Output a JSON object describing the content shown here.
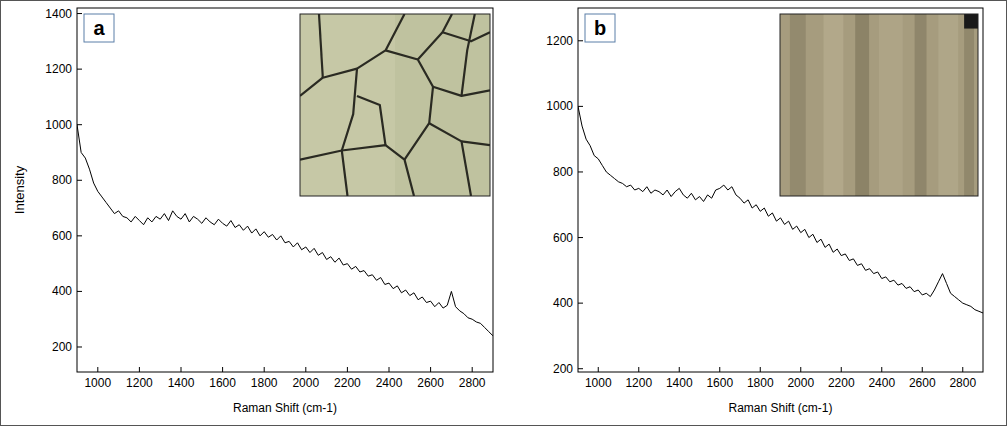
{
  "chart_data": [
    {
      "type": "line",
      "panel_label": "a",
      "x_label": "Raman Shift (cm-1)",
      "y_label": "Intensity",
      "xlim": [
        900,
        2900
      ],
      "ylim": [
        110,
        1420
      ],
      "xticks": [
        1000,
        1200,
        1400,
        1600,
        1800,
        2000,
        2200,
        2400,
        2600,
        2800
      ],
      "yticks": [
        200,
        400,
        600,
        800,
        1000,
        1200,
        1400
      ],
      "grid": false,
      "x": [
        900,
        920,
        940,
        960,
        980,
        1000,
        1020,
        1040,
        1060,
        1080,
        1100,
        1120,
        1140,
        1160,
        1180,
        1200,
        1220,
        1240,
        1260,
        1280,
        1300,
        1320,
        1340,
        1360,
        1380,
        1400,
        1420,
        1440,
        1460,
        1480,
        1500,
        1520,
        1540,
        1560,
        1580,
        1600,
        1620,
        1640,
        1660,
        1680,
        1700,
        1720,
        1740,
        1760,
        1780,
        1800,
        1820,
        1840,
        1860,
        1880,
        1900,
        1920,
        1940,
        1960,
        1980,
        2000,
        2020,
        2040,
        2060,
        2080,
        2100,
        2120,
        2140,
        2160,
        2180,
        2200,
        2220,
        2240,
        2260,
        2280,
        2300,
        2320,
        2340,
        2360,
        2380,
        2400,
        2420,
        2440,
        2460,
        2480,
        2500,
        2520,
        2540,
        2560,
        2580,
        2600,
        2620,
        2640,
        2660,
        2680,
        2700,
        2720,
        2740,
        2760,
        2780,
        2800,
        2820,
        2840,
        2860,
        2880,
        2900
      ],
      "series": [
        {
          "color": "#000000",
          "values": [
            1000,
            900,
            880,
            840,
            790,
            760,
            740,
            720,
            700,
            680,
            690,
            670,
            665,
            650,
            670,
            655,
            640,
            665,
            650,
            670,
            660,
            680,
            655,
            690,
            670,
            660,
            680,
            650,
            670,
            660,
            645,
            665,
            650,
            640,
            660,
            645,
            635,
            655,
            630,
            640,
            620,
            635,
            610,
            625,
            600,
            615,
            595,
            605,
            585,
            600,
            575,
            580,
            560,
            575,
            550,
            560,
            540,
            555,
            530,
            540,
            515,
            525,
            505,
            520,
            495,
            500,
            480,
            490,
            470,
            475,
            455,
            460,
            440,
            450,
            425,
            430,
            410,
            420,
            395,
            405,
            385,
            395,
            370,
            380,
            360,
            365,
            345,
            360,
            340,
            350,
            400,
            345,
            330,
            320,
            305,
            300,
            290,
            285,
            270,
            255,
            240
          ]
        }
      ]
    },
    {
      "type": "line",
      "panel_label": "b",
      "x_label": "Raman Shift (cm-1)",
      "xlim": [
        900,
        2900
      ],
      "ylim": [
        190,
        1300
      ],
      "xticks": [
        1000,
        1200,
        1400,
        1600,
        1800,
        2000,
        2200,
        2400,
        2600,
        2800
      ],
      "yticks": [
        200,
        400,
        600,
        800,
        1000,
        1200
      ],
      "grid": false,
      "x": [
        900,
        920,
        940,
        960,
        980,
        1000,
        1020,
        1040,
        1060,
        1080,
        1100,
        1120,
        1140,
        1160,
        1180,
        1200,
        1220,
        1240,
        1260,
        1280,
        1300,
        1320,
        1340,
        1360,
        1380,
        1400,
        1420,
        1440,
        1460,
        1480,
        1500,
        1520,
        1540,
        1560,
        1580,
        1600,
        1620,
        1640,
        1660,
        1680,
        1700,
        1720,
        1740,
        1760,
        1780,
        1800,
        1820,
        1840,
        1860,
        1880,
        1900,
        1920,
        1940,
        1960,
        1980,
        2000,
        2020,
        2040,
        2060,
        2080,
        2100,
        2120,
        2140,
        2160,
        2180,
        2200,
        2220,
        2240,
        2260,
        2280,
        2300,
        2320,
        2340,
        2360,
        2380,
        2400,
        2420,
        2440,
        2460,
        2480,
        2500,
        2520,
        2540,
        2560,
        2580,
        2600,
        2620,
        2640,
        2660,
        2680,
        2700,
        2720,
        2740,
        2760,
        2780,
        2800,
        2820,
        2840,
        2860,
        2880,
        2900
      ],
      "series": [
        {
          "color": "#000000",
          "values": [
            1000,
            940,
            900,
            880,
            850,
            840,
            820,
            800,
            790,
            780,
            770,
            765,
            755,
            760,
            745,
            750,
            740,
            755,
            735,
            745,
            740,
            730,
            745,
            725,
            740,
            750,
            730,
            720,
            735,
            715,
            725,
            710,
            730,
            720,
            745,
            750,
            760,
            745,
            755,
            730,
            720,
            705,
            715,
            690,
            700,
            680,
            690,
            665,
            675,
            650,
            660,
            640,
            650,
            625,
            635,
            615,
            625,
            600,
            610,
            585,
            595,
            570,
            580,
            555,
            565,
            545,
            550,
            530,
            535,
            515,
            520,
            500,
            505,
            490,
            495,
            475,
            480,
            465,
            470,
            455,
            460,
            445,
            450,
            435,
            440,
            425,
            430,
            420,
            440,
            465,
            490,
            460,
            430,
            420,
            410,
            400,
            395,
            390,
            380,
            375,
            370
          ]
        }
      ]
    }
  ]
}
